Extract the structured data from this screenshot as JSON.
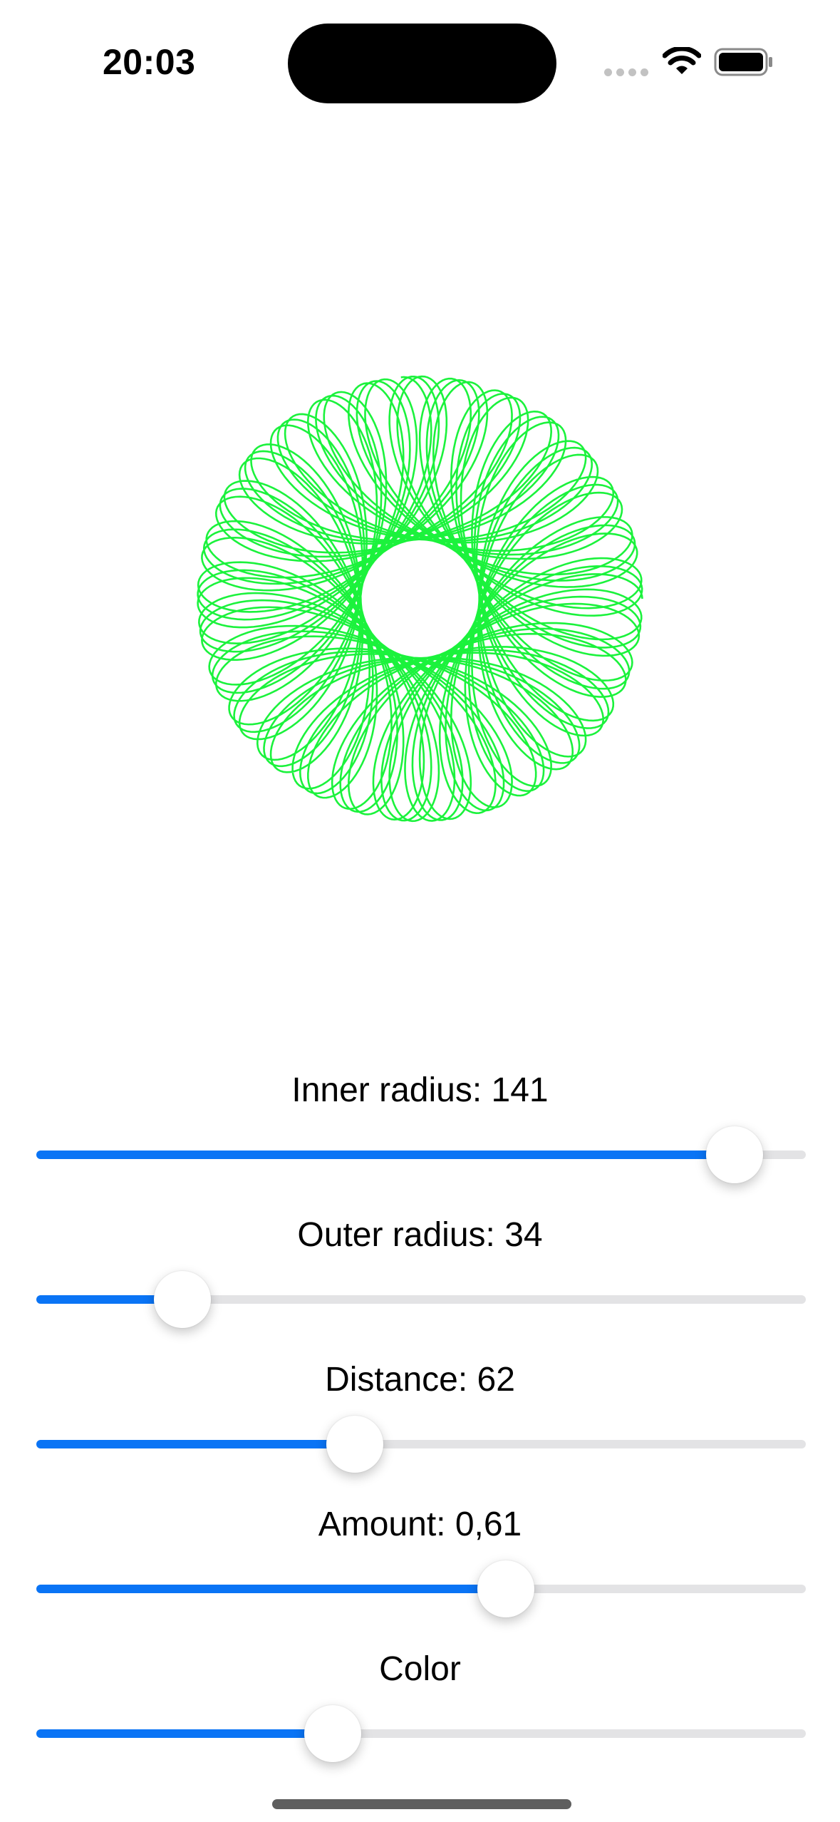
{
  "status_bar": {
    "time": "20:03",
    "icons": [
      "cellular-dots-icon",
      "wifi-icon",
      "battery-icon"
    ]
  },
  "spirograph": {
    "stroke_color": "#1bf23c",
    "inner_radius": 141,
    "outer_radius": 34,
    "distance": 62,
    "amount": 0.61
  },
  "controls": [
    {
      "id": "inner-radius",
      "label": "Inner radius: 141",
      "level": 0.907
    },
    {
      "id": "outer-radius",
      "label": "Outer radius: 34",
      "level": 0.19
    },
    {
      "id": "distance",
      "label": "Distance: 62",
      "level": 0.414
    },
    {
      "id": "amount",
      "label": "Amount: 0,61",
      "level": 0.61
    },
    {
      "id": "color",
      "label": "Color",
      "level": 0.385
    }
  ],
  "colors": {
    "accent": "#0a74f5",
    "track": "#e3e3e5",
    "background": "#ffffff"
  }
}
